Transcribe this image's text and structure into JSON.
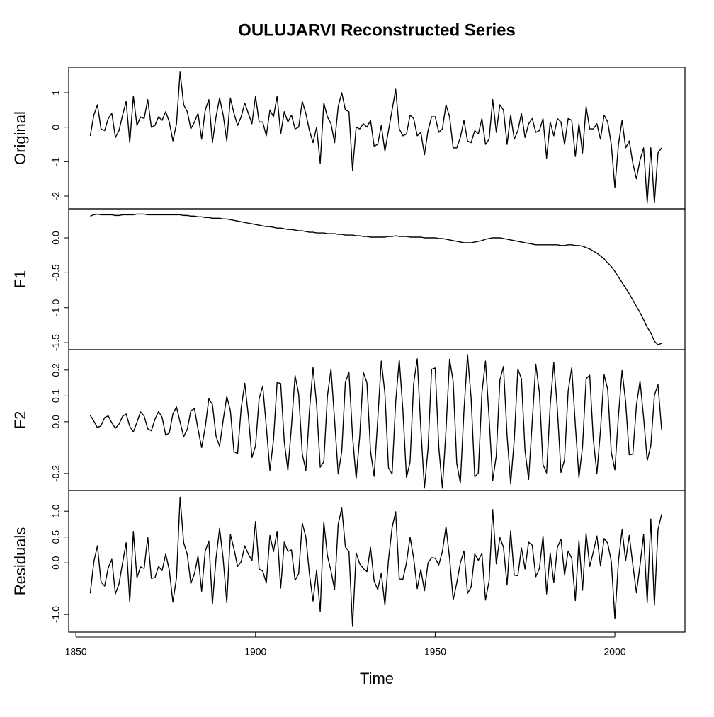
{
  "chart_data": [
    {
      "type": "line",
      "title": "OULUJARVI Reconstructed Series",
      "ylabel": "Original",
      "color": "#000000",
      "ylim": [
        -2.37,
        1.74
      ],
      "yticks": [
        -2,
        -1,
        0,
        1
      ],
      "values": [
        -0.25,
        0.35,
        0.65,
        -0.05,
        -0.1,
        0.25,
        0.4,
        -0.3,
        -0.1,
        0.35,
        0.75,
        -0.45,
        0.9,
        0.05,
        0.3,
        0.25,
        0.8,
        0.0,
        0.05,
        0.3,
        0.2,
        0.45,
        0.15,
        -0.4,
        0.1,
        1.6,
        0.65,
        0.45,
        -0.05,
        0.15,
        0.4,
        -0.35,
        0.5,
        0.8,
        -0.45,
        0.3,
        0.85,
        0.35,
        -0.4,
        0.85,
        0.4,
        0.05,
        0.3,
        0.7,
        0.4,
        0.1,
        0.9,
        0.15,
        0.15,
        -0.25,
        0.5,
        0.3,
        0.9,
        -0.2,
        0.45,
        0.15,
        0.35,
        -0.05,
        0.0,
        0.75,
        0.4,
        -0.1,
        -0.45,
        0.0,
        -1.05,
        0.7,
        0.3,
        0.1,
        -0.45,
        0.6,
        1.0,
        0.5,
        0.45,
        -1.25,
        0.0,
        -0.05,
        0.1,
        0.0,
        0.2,
        -0.55,
        -0.5,
        0.05,
        -0.7,
        -0.1,
        0.5,
        1.1,
        -0.05,
        -0.25,
        -0.2,
        0.35,
        0.25,
        -0.25,
        -0.15,
        -0.8,
        -0.1,
        0.3,
        0.3,
        -0.15,
        -0.05,
        0.65,
        0.3,
        -0.6,
        -0.6,
        -0.3,
        0.2,
        -0.4,
        -0.45,
        -0.1,
        -0.2,
        0.25,
        -0.5,
        -0.35,
        0.8,
        -0.15,
        0.65,
        0.5,
        -0.5,
        0.35,
        -0.35,
        -0.1,
        0.4,
        -0.3,
        0.1,
        0.25,
        -0.15,
        -0.1,
        0.25,
        -0.9,
        0.15,
        -0.25,
        0.25,
        0.15,
        -0.5,
        0.25,
        0.2,
        -0.85,
        0.1,
        -0.75,
        0.6,
        -0.05,
        -0.05,
        0.1,
        -0.35,
        0.35,
        0.15,
        -0.5,
        -1.75,
        -0.5,
        0.2,
        -0.6,
        -0.4,
        -1.05,
        -1.5,
        -0.95,
        -0.6,
        -2.2,
        -0.6,
        -2.2,
        -0.75,
        -0.6
      ]
    },
    {
      "type": "line",
      "ylabel": "F1",
      "color": "#000000",
      "ylim": [
        -1.6,
        0.415
      ],
      "yticks": [
        -1.5,
        {
          "value": -1,
          "label": "-1.0"
        },
        -0.5,
        {
          "value": 0,
          "label": "0.0"
        }
      ],
      "values": [
        0.31,
        0.33,
        0.34,
        0.33,
        0.33,
        0.33,
        0.33,
        0.32,
        0.32,
        0.33,
        0.33,
        0.33,
        0.33,
        0.34,
        0.34,
        0.34,
        0.33,
        0.33,
        0.33,
        0.33,
        0.33,
        0.33,
        0.33,
        0.33,
        0.33,
        0.33,
        0.32,
        0.32,
        0.31,
        0.31,
        0.3,
        0.3,
        0.29,
        0.29,
        0.28,
        0.28,
        0.28,
        0.27,
        0.27,
        0.26,
        0.25,
        0.24,
        0.23,
        0.22,
        0.21,
        0.2,
        0.19,
        0.18,
        0.17,
        0.16,
        0.16,
        0.15,
        0.14,
        0.14,
        0.13,
        0.12,
        0.12,
        0.11,
        0.1,
        0.1,
        0.09,
        0.08,
        0.08,
        0.07,
        0.07,
        0.07,
        0.06,
        0.06,
        0.06,
        0.05,
        0.05,
        0.04,
        0.04,
        0.04,
        0.03,
        0.03,
        0.02,
        0.02,
        0.01,
        0.01,
        0.01,
        0.01,
        0.01,
        0.02,
        0.02,
        0.03,
        0.02,
        0.02,
        0.02,
        0.01,
        0.01,
        0.01,
        0.01,
        0.0,
        0.0,
        0.0,
        0.0,
        -0.01,
        -0.01,
        -0.02,
        -0.03,
        -0.04,
        -0.05,
        -0.06,
        -0.07,
        -0.07,
        -0.07,
        -0.06,
        -0.05,
        -0.04,
        -0.02,
        -0.01,
        0.0,
        0.0,
        0.0,
        -0.01,
        -0.02,
        -0.03,
        -0.04,
        -0.05,
        -0.06,
        -0.07,
        -0.08,
        -0.09,
        -0.1,
        -0.1,
        -0.1,
        -0.1,
        -0.1,
        -0.1,
        -0.1,
        -0.11,
        -0.11,
        -0.1,
        -0.1,
        -0.11,
        -0.11,
        -0.12,
        -0.14,
        -0.16,
        -0.19,
        -0.22,
        -0.26,
        -0.3,
        -0.36,
        -0.41,
        -0.48,
        -0.56,
        -0.64,
        -0.72,
        -0.8,
        -0.89,
        -0.98,
        -1.07,
        -1.17,
        -1.28,
        -1.36,
        -1.48,
        -1.53,
        -1.51
      ]
    },
    {
      "type": "line",
      "ylabel": "F2",
      "color": "#000000",
      "ylim": [
        -0.266,
        0.279
      ],
      "yticks": [
        -0.2,
        {
          "value": 0,
          "label": "0.0"
        },
        0.1,
        0.2
      ],
      "values": [
        0.025,
        0.003,
        -0.023,
        -0.015,
        0.016,
        0.023,
        -0.004,
        -0.025,
        -0.009,
        0.021,
        0.03,
        -0.018,
        -0.039,
        -0.002,
        0.038,
        0.022,
        -0.027,
        -0.035,
        0.009,
        0.04,
        0.017,
        -0.052,
        -0.043,
        0.03,
        0.058,
        -0.001,
        -0.058,
        -0.029,
        0.043,
        0.051,
        -0.029,
        -0.1,
        -0.021,
        0.089,
        0.067,
        -0.055,
        -0.095,
        0.007,
        0.098,
        0.043,
        -0.116,
        -0.123,
        0.053,
        0.149,
        0.023,
        -0.138,
        -0.093,
        0.09,
        0.138,
        -0.02,
        -0.188,
        -0.07,
        0.152,
        0.148,
        -0.078,
        -0.188,
        -0.017,
        0.179,
        0.108,
        -0.124,
        -0.189,
        0.042,
        0.21,
        0.065,
        -0.176,
        -0.155,
        0.099,
        0.204,
        0.006,
        -0.202,
        -0.114,
        0.154,
        0.191,
        -0.057,
        -0.22,
        -0.055,
        0.191,
        0.152,
        -0.114,
        -0.211,
        0.007,
        0.235,
        0.11,
        -0.178,
        -0.202,
        0.077,
        0.24,
        0.046,
        -0.216,
        -0.156,
        0.148,
        0.244,
        -0.026,
        -0.257,
        -0.104,
        0.203,
        0.208,
        -0.099,
        -0.257,
        -0.034,
        0.242,
        0.156,
        -0.161,
        -0.237,
        0.042,
        0.26,
        0.091,
        -0.213,
        -0.198,
        0.112,
        0.235,
        0.014,
        -0.228,
        -0.132,
        0.161,
        0.214,
        -0.053,
        -0.24,
        -0.07,
        0.204,
        0.166,
        -0.113,
        -0.223,
        0.0,
        0.223,
        0.113,
        -0.166,
        -0.198,
        0.064,
        0.23,
        0.048,
        -0.196,
        -0.147,
        0.119,
        0.209,
        -0.013,
        -0.216,
        -0.097,
        0.167,
        0.18,
        -0.068,
        -0.2,
        -0.032,
        0.182,
        0.126,
        -0.118,
        -0.186,
        0.024,
        0.198,
        0.076,
        -0.128,
        -0.125,
        0.064,
        0.158,
        0.016,
        -0.15,
        -0.093,
        0.102,
        0.144,
        -0.03
      ]
    },
    {
      "type": "line",
      "ylabel": "Residuals",
      "xlabel": "Time",
      "color": "#000000",
      "ylim": [
        -1.34,
        1.4
      ],
      "yticks": [
        {
          "value": -1,
          "label": "-1.0"
        },
        {
          "value": 0,
          "label": "0.0"
        },
        0.5,
        {
          "value": 1,
          "label": "1.0"
        }
      ],
      "xlim": [
        1848,
        2019.5
      ],
      "xticks": [
        1850,
        1900,
        1950,
        2000
      ],
      "x": [
        1854,
        1855,
        1856,
        1857,
        1858,
        1859,
        1860,
        1861,
        1862,
        1863,
        1864,
        1865,
        1866,
        1867,
        1868,
        1869,
        1870,
        1871,
        1872,
        1873,
        1874,
        1875,
        1876,
        1877,
        1878,
        1879,
        1880,
        1881,
        1882,
        1883,
        1884,
        1885,
        1886,
        1887,
        1888,
        1889,
        1890,
        1891,
        1892,
        1893,
        1894,
        1895,
        1896,
        1897,
        1898,
        1899,
        1900,
        1901,
        1902,
        1903,
        1904,
        1905,
        1906,
        1907,
        1908,
        1909,
        1910,
        1911,
        1912,
        1913,
        1914,
        1915,
        1916,
        1917,
        1918,
        1919,
        1920,
        1921,
        1922,
        1923,
        1924,
        1925,
        1926,
        1927,
        1928,
        1929,
        1930,
        1931,
        1932,
        1933,
        1934,
        1935,
        1936,
        1937,
        1938,
        1939,
        1940,
        1941,
        1942,
        1943,
        1944,
        1945,
        1946,
        1947,
        1948,
        1949,
        1950,
        1951,
        1952,
        1953,
        1954,
        1955,
        1956,
        1957,
        1958,
        1959,
        1960,
        1961,
        1962,
        1963,
        1964,
        1965,
        1966,
        1967,
        1968,
        1969,
        1970,
        1971,
        1972,
        1973,
        1974,
        1975,
        1976,
        1977,
        1978,
        1979,
        1980,
        1981,
        1982,
        1983,
        1984,
        1985,
        1986,
        1987,
        1988,
        1989,
        1990,
        1991,
        1992,
        1993,
        1994,
        1995,
        1996,
        1997,
        1998,
        1999,
        2000,
        2001,
        2002,
        2003,
        2004,
        2005,
        2006,
        2007,
        2008,
        2009,
        2010,
        2011,
        2012,
        2013
      ],
      "values": [
        -0.59,
        0.02,
        0.33,
        -0.37,
        -0.45,
        -0.1,
        0.07,
        -0.6,
        -0.41,
        0.0,
        0.39,
        -0.76,
        0.61,
        -0.29,
        -0.08,
        -0.11,
        0.5,
        -0.3,
        -0.29,
        -0.07,
        -0.15,
        0.17,
        -0.14,
        -0.76,
        -0.29,
        1.27,
        0.39,
        0.16,
        -0.4,
        -0.21,
        0.13,
        -0.55,
        0.23,
        0.42,
        -0.8,
        0.08,
        0.67,
        0.07,
        -0.77,
        0.55,
        0.27,
        -0.07,
        0.02,
        0.33,
        0.17,
        0.04,
        0.8,
        -0.12,
        -0.16,
        -0.39,
        0.53,
        0.22,
        0.61,
        -0.49,
        0.4,
        0.22,
        0.25,
        -0.34,
        -0.21,
        0.77,
        0.5,
        -0.22,
        -0.74,
        -0.14,
        -0.94,
        0.79,
        0.14,
        -0.16,
        -0.52,
        0.75,
        1.06,
        0.31,
        0.22,
        -1.23,
        0.19,
        -0.02,
        -0.11,
        -0.17,
        0.3,
        -0.35,
        -0.52,
        -0.2,
        -0.82,
        0.06,
        0.68,
        0.99,
        -0.31,
        -0.32,
        0.0,
        0.5,
        0.09,
        -0.5,
        -0.13,
        -0.54,
        0.0,
        0.1,
        0.09,
        -0.04,
        0.22,
        0.7,
        0.09,
        -0.72,
        -0.39,
        0.0,
        0.23,
        -0.59,
        -0.47,
        0.17,
        0.05,
        0.18,
        -0.72,
        -0.35,
        1.03,
        -0.02,
        0.49,
        0.3,
        -0.43,
        0.62,
        -0.24,
        -0.25,
        0.29,
        -0.12,
        0.4,
        0.34,
        -0.27,
        -0.11,
        0.52,
        -0.6,
        0.19,
        -0.38,
        0.3,
        0.46,
        -0.24,
        0.23,
        0.09,
        -0.73,
        0.43,
        -0.53,
        0.57,
        -0.07,
        0.21,
        0.52,
        -0.06,
        0.47,
        0.38,
        0.03,
        -1.08,
        0.04,
        0.64,
        0.04,
        0.53,
        -0.04,
        -0.58,
        -0.04,
        0.55,
        -0.77,
        0.85,
        -0.82,
        0.64,
        0.94
      ]
    }
  ]
}
